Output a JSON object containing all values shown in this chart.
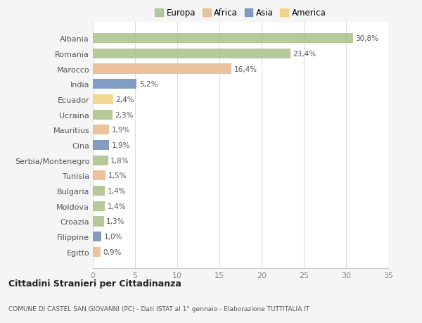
{
  "countries": [
    "Albania",
    "Romania",
    "Marocco",
    "India",
    "Ecuador",
    "Ucraina",
    "Mauritius",
    "Cina",
    "Serbia/Montenegro",
    "Tunisia",
    "Bulgaria",
    "Moldova",
    "Croazia",
    "Filippine",
    "Egitto"
  ],
  "values": [
    30.8,
    23.4,
    16.4,
    5.2,
    2.4,
    2.3,
    1.9,
    1.9,
    1.8,
    1.5,
    1.4,
    1.4,
    1.3,
    1.0,
    0.9
  ],
  "labels": [
    "30,8%",
    "23,4%",
    "16,4%",
    "5,2%",
    "2,4%",
    "2,3%",
    "1,9%",
    "1,9%",
    "1,8%",
    "1,5%",
    "1,4%",
    "1,4%",
    "1,3%",
    "1,0%",
    "0,9%"
  ],
  "continents": [
    "Europa",
    "Europa",
    "Africa",
    "Asia",
    "America",
    "Europa",
    "Africa",
    "Asia",
    "Europa",
    "Africa",
    "Europa",
    "Europa",
    "Europa",
    "Asia",
    "Africa"
  ],
  "colors": {
    "Europa": "#a8c08a",
    "Africa": "#e8b88a",
    "Asia": "#6b8cba",
    "America": "#f0d080"
  },
  "legend_order": [
    "Europa",
    "Africa",
    "Asia",
    "America"
  ],
  "xlim": [
    0,
    35
  ],
  "xticks": [
    0,
    5,
    10,
    15,
    20,
    25,
    30,
    35
  ],
  "bg_color": "#f5f5f5",
  "plot_bg_color": "#ffffff",
  "title1": "Cittadini Stranieri per Cittadinanza",
  "title2": "COMUNE DI CASTEL SAN GIOVANNI (PC) - Dati ISTAT al 1° gennaio - Elaborazione TUTTITALIA.IT",
  "figsize": [
    6.0,
    4.6
  ],
  "dpi": 100
}
